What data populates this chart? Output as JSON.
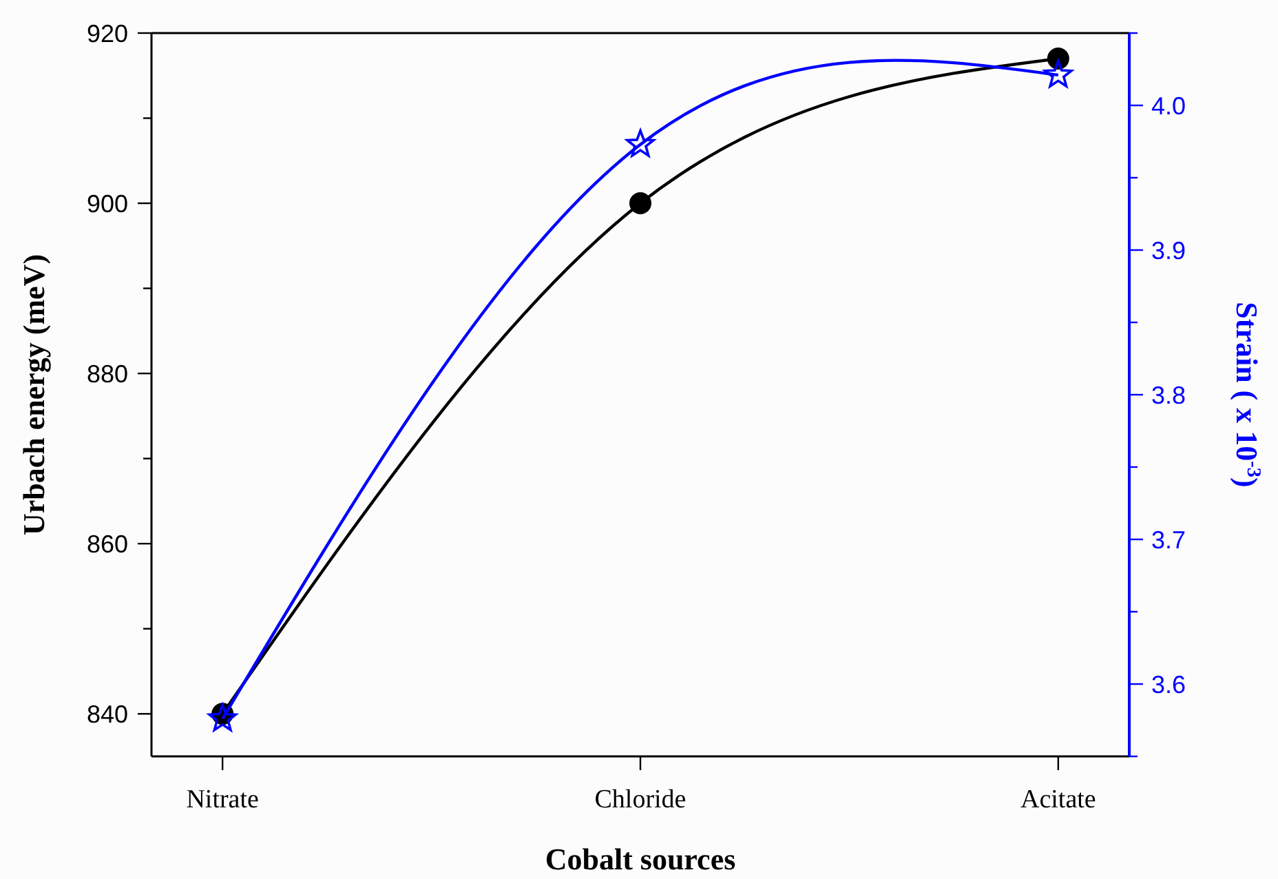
{
  "chart_data": {
    "type": "line",
    "xlabel": "Cobalt sources",
    "ylabel": "Urbach energy (meV)",
    "y2label": "Strain ( x 10$^{-3}$)",
    "categories": [
      "Nitrate",
      "Chloride",
      "Acitate"
    ],
    "series": [
      {
        "color": "#000000",
        "values": [
          840,
          900,
          917
        ],
        "marker": "circle"
      },
      {
        "color": "#0000ff",
        "values": [
          3.576,
          3.973,
          4.021
        ],
        "axis": "y2",
        "marker": "star"
      }
    ],
    "ylim": [
      835,
      920
    ],
    "yticks": [
      840,
      {
        "value": 850,
        "label": null
      },
      860,
      {
        "value": 870,
        "label": null
      },
      880,
      {
        "value": 890,
        "label": null
      },
      900,
      {
        "value": 910,
        "label": null
      },
      920
    ],
    "y2lim": [
      3.55,
      4.05
    ],
    "y2ticks": [
      {
        "value": 3.55,
        "label": null
      },
      3.6,
      {
        "value": 3.65,
        "label": null
      },
      3.7,
      {
        "value": 3.75,
        "label": null
      },
      3.8,
      {
        "value": 3.85,
        "label": null
      },
      3.9,
      {
        "value": 3.95,
        "label": null
      },
      "4.0",
      {
        "value": 4.05,
        "label": null
      }
    ],
    "line_style": "solid",
    "grid": false
  }
}
